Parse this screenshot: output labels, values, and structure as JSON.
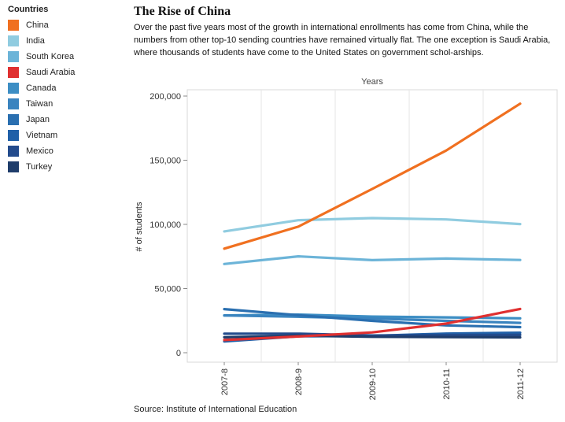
{
  "legend": {
    "title": "Countries"
  },
  "headline": "The Rise of China",
  "subtitle": "Over the past five years most of the growth in international enrollments has come from China, while the numbers from other top-10 sending countries have remained virtually flat. The one exception is Saudi Arabia, where thousands of students have come to the United States on government schol-arships.",
  "source": "Source: Institute of International Education",
  "chart_data": {
    "type": "line",
    "title": "",
    "xlabel": "Years",
    "ylabel": "# of students",
    "x": [
      "2007-8",
      "2008-9",
      "2009-10",
      "2010-11",
      "2011-12"
    ],
    "yticks": [
      0,
      50000,
      100000,
      150000,
      200000
    ],
    "ytick_labels": [
      "0",
      "50,000",
      "100,000",
      "150,000",
      "200,000"
    ],
    "ylim": [
      0,
      200000
    ],
    "grid": {
      "vertical": true,
      "horizontal": false
    },
    "legend_position": "left",
    "series": [
      {
        "name": "China",
        "color": "#f07020",
        "values": [
          81127,
          98235,
          127628,
          157558,
          194029
        ]
      },
      {
        "name": "India",
        "color": "#90cce0",
        "values": [
          94563,
          103260,
          104897,
          103895,
          100270
        ]
      },
      {
        "name": "South Korea",
        "color": "#6cb4d8",
        "values": [
          69124,
          75065,
          72153,
          73351,
          72295
        ]
      },
      {
        "name": "Saudi Arabia",
        "color": "#e03030",
        "values": [
          9873,
          12661,
          15810,
          22704,
          34139
        ]
      },
      {
        "name": "Canada",
        "color": "#3d8ec4",
        "values": [
          29051,
          29697,
          28145,
          27546,
          26821
        ]
      },
      {
        "name": "Taiwan",
        "color": "#3a84bf",
        "values": [
          29001,
          28065,
          26685,
          24818,
          23250
        ]
      },
      {
        "name": "Japan",
        "color": "#2a6fb0",
        "values": [
          33974,
          29264,
          24842,
          21290,
          19966
        ]
      },
      {
        "name": "Vietnam",
        "color": "#2060a8",
        "values": [
          8769,
          12823,
          13112,
          14888,
          15572
        ]
      },
      {
        "name": "Mexico",
        "color": "#234b8c",
        "values": [
          14837,
          14850,
          13450,
          13713,
          13893
        ]
      },
      {
        "name": "Turkey",
        "color": "#1f3d6b",
        "values": [
          12030,
          13263,
          12397,
          12184,
          11973
        ]
      }
    ]
  }
}
